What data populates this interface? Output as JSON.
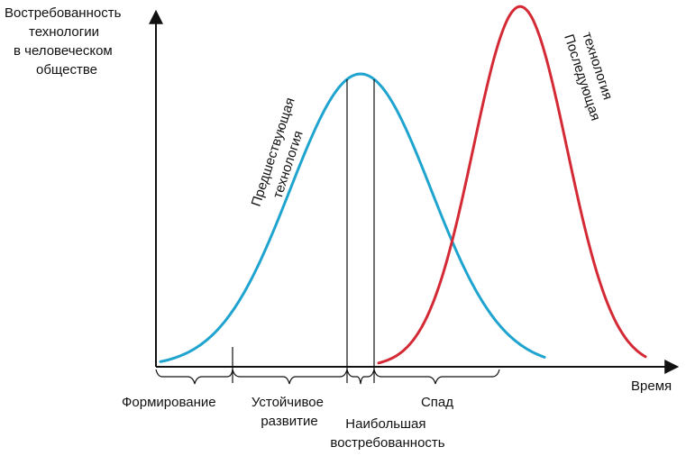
{
  "chart_data": {
    "type": "line",
    "title": "",
    "ylabel_lines": [
      "Востребованность",
      "технологии",
      "в человеческом",
      "обществе"
    ],
    "xlabel": "Время",
    "series": [
      {
        "name": "Предшествующая технология",
        "label_lines": [
          "Предшествующая",
          "технология"
        ],
        "color": "#1fa3cf",
        "peak_time": 400,
        "peak_demand": 1.0
      },
      {
        "name": "Последующая технология",
        "label_lines": [
          "Последующая",
          "технология"
        ],
        "color": "#d42a35",
        "peak_time": 577,
        "peak_demand": 1.23
      }
    ],
    "phases": [
      {
        "lines": [
          "Формирование"
        ]
      },
      {
        "lines": [
          "Устойчивое",
          "развитие"
        ]
      },
      {
        "lines": [
          "Наибольшая",
          "востребованность"
        ]
      },
      {
        "lines": [
          "Спад"
        ]
      }
    ]
  },
  "colors": {
    "axis": "#111111",
    "text": "#111111",
    "prev_tech": "#1fa3cf",
    "next_tech": "#d42a35"
  }
}
